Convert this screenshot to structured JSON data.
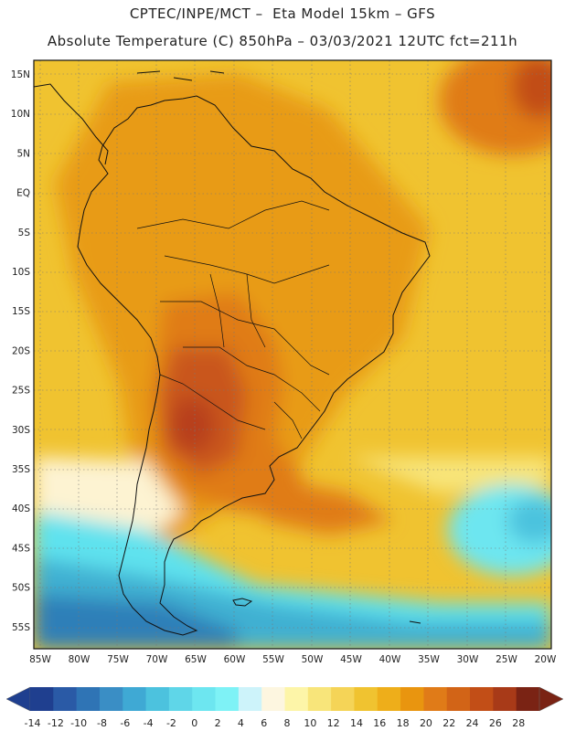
{
  "header": {
    "line1": "CPTEC/INPE/MCT –  Eta Model 15km – GFS",
    "line2": "Absolute Temperature (C) 850hPa – 03/03/2021 12UTC fct=211h"
  },
  "map": {
    "lat_labels": [
      "15N",
      "10N",
      "5N",
      "EQ",
      "5S",
      "10S",
      "15S",
      "20S",
      "25S",
      "30S",
      "35S",
      "40S",
      "45S",
      "50S",
      "55S"
    ],
    "lon_labels": [
      "85W",
      "80W",
      "75W",
      "70W",
      "65W",
      "60W",
      "55W",
      "50W",
      "45W",
      "40W",
      "35W",
      "30W",
      "25W",
      "20W"
    ],
    "colors": {
      "water_background": "#f0c330",
      "warm_mid": "#eeae1a",
      "warm_land": "#e89b14",
      "hot": "#e07b18",
      "very_hot": "#c9571a",
      "deep_hot": "#b8401a",
      "cold_cyan": "#5fe2ee",
      "cold_blue": "#3fb0d2",
      "cold_deep": "#2d7fb8",
      "cool_pale": "#fdf3d2",
      "coast": "#111111"
    }
  },
  "colorbar": {
    "labels": [
      "-14",
      "-12",
      "-10",
      "-8",
      "-6",
      "-4",
      "-2",
      "0",
      "2",
      "4",
      "6",
      "8",
      "10",
      "12",
      "14",
      "16",
      "18",
      "20",
      "22",
      "24",
      "26",
      "28"
    ],
    "colors": [
      "#1f3f8f",
      "#2a5aa6",
      "#2f74b5",
      "#3a8ec5",
      "#3fa9d4",
      "#4cc2de",
      "#5fd6e8",
      "#6de6f0",
      "#7ef2f6",
      "#cdf3fa",
      "#fdf6e0",
      "#fdf5a8",
      "#f8e57a",
      "#f5d457",
      "#f0c330",
      "#eeae1a",
      "#e9950f",
      "#e07b18",
      "#d26417",
      "#c24e17",
      "#a83a18",
      "#7a2314"
    ]
  }
}
